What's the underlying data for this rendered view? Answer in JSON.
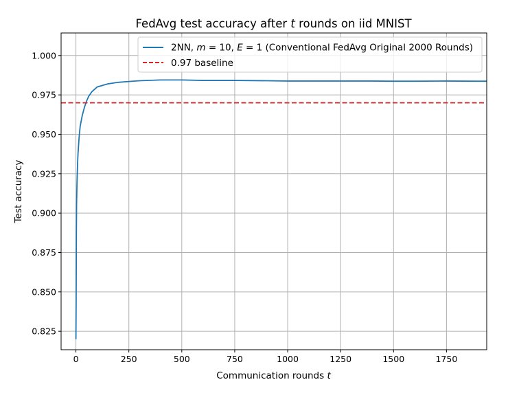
{
  "chart_data": {
    "type": "line",
    "title": "FedAvg test accuracy after t rounds on iid MNIST",
    "xlabel": "Communication rounds t",
    "ylabel": "Test accuracy",
    "xlim": [
      -70,
      1940
    ],
    "ylim": [
      0.8133,
      1.0143
    ],
    "xticks": [
      0,
      250,
      500,
      750,
      1000,
      1250,
      1500,
      1750
    ],
    "yticks": [
      0.825,
      0.85,
      0.875,
      0.9,
      0.925,
      0.95,
      0.975,
      1.0
    ],
    "xtick_labels": [
      "0",
      "250",
      "500",
      "750",
      "1000",
      "1250",
      "1500",
      "1750"
    ],
    "ytick_labels": [
      "0.825",
      "0.850",
      "0.875",
      "0.900",
      "0.925",
      "0.950",
      "0.975",
      "1.000"
    ],
    "grid": true,
    "legend_position": "top-right",
    "series": [
      {
        "name": "2NN, m = 10, E = 1 (Conventional FedAvg Original 2000 Rounds)",
        "legend": {
          "prefix": "2NN, ",
          "m": "m",
          "m_rest": " = 10, ",
          "e": "E",
          "e_rest": " = 1 (Conventional FedAvg Original 2000 Rounds)"
        },
        "color": "#1f77b4",
        "style": "solid",
        "x": [
          0,
          1,
          2,
          3,
          5,
          8,
          10,
          15,
          20,
          30,
          40,
          50,
          60,
          75,
          100,
          125,
          150,
          200,
          250,
          300,
          400,
          500,
          600,
          750,
          900,
          1000,
          1100,
          1250,
          1400,
          1500,
          1600,
          1750,
          1900,
          1940
        ],
        "y": [
          0.82,
          0.845,
          0.885,
          0.905,
          0.918,
          0.932,
          0.938,
          0.948,
          0.955,
          0.962,
          0.967,
          0.971,
          0.974,
          0.977,
          0.98,
          0.981,
          0.982,
          0.983,
          0.9835,
          0.984,
          0.9845,
          0.9845,
          0.9842,
          0.9842,
          0.984,
          0.9838,
          0.9838,
          0.9838,
          0.9838,
          0.9837,
          0.9837,
          0.9838,
          0.9837,
          0.9837
        ]
      },
      {
        "name": "0.97 baseline",
        "color": "#d62728",
        "style": "dashed",
        "x": [
          -70,
          1940
        ],
        "y": [
          0.97,
          0.97
        ]
      }
    ]
  }
}
